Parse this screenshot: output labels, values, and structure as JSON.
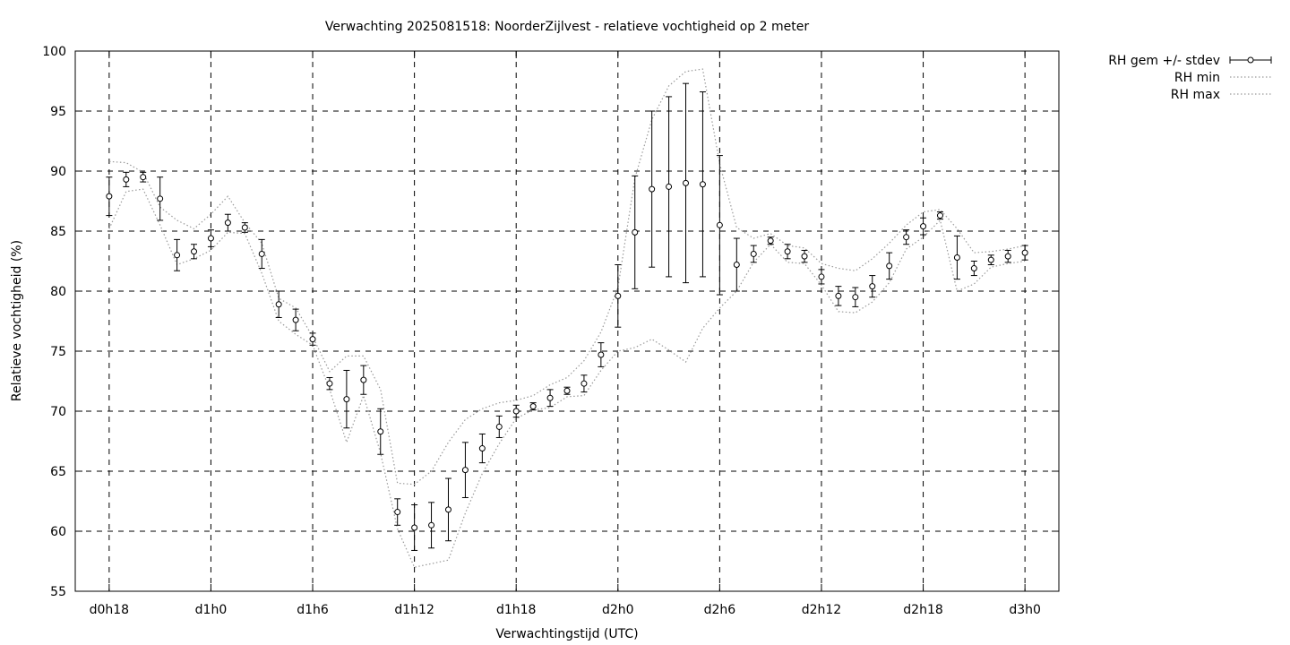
{
  "chart_data": {
    "type": "line",
    "title": "Verwachting 2025081518: NoorderZijlvest - relatieve vochtigheid op 2 meter",
    "xlabel": "Verwachtingstijd (UTC)",
    "ylabel": "Relatieve vochtigheid (%)",
    "xlim": [
      -2,
      56
    ],
    "ylim": [
      55,
      100
    ],
    "grid": true,
    "legend_position": "outside-top-right",
    "x_ticks": [
      {
        "x": 0,
        "label": "d0h18"
      },
      {
        "x": 6,
        "label": "d1h0"
      },
      {
        "x": 12,
        "label": "d1h6"
      },
      {
        "x": 18,
        "label": "d1h12"
      },
      {
        "x": 24,
        "label": "d1h18"
      },
      {
        "x": 30,
        "label": "d2h0"
      },
      {
        "x": 36,
        "label": "d2h6"
      },
      {
        "x": 42,
        "label": "d2h12"
      },
      {
        "x": 48,
        "label": "d2h18"
      },
      {
        "x": 54,
        "label": "d3h0"
      }
    ],
    "y_ticks": [
      55,
      60,
      65,
      70,
      75,
      80,
      85,
      90,
      95,
      100
    ],
    "x": [
      0,
      1,
      2,
      3,
      4,
      5,
      6,
      7,
      8,
      9,
      10,
      11,
      12,
      13,
      14,
      15,
      16,
      17,
      18,
      19,
      20,
      21,
      22,
      23,
      24,
      25,
      26,
      27,
      28,
      29,
      30,
      31,
      32,
      33,
      34,
      35,
      36,
      37,
      38,
      39,
      40,
      41,
      42,
      43,
      44,
      45,
      46,
      47,
      48,
      49,
      50,
      51,
      52,
      53,
      54
    ],
    "series": [
      {
        "name": "RH gem +/- stdev",
        "style": "points-errorbars",
        "mean": [
          87.9,
          89.3,
          89.5,
          87.7,
          83.0,
          83.3,
          84.4,
          85.7,
          85.3,
          83.1,
          78.9,
          77.6,
          76.0,
          72.3,
          71.0,
          72.6,
          68.3,
          61.6,
          60.3,
          60.5,
          61.8,
          65.1,
          66.9,
          68.7,
          70.0,
          70.4,
          71.1,
          71.7,
          72.3,
          74.7,
          79.6,
          84.9,
          88.5,
          88.7,
          89.0,
          88.9,
          85.5,
          82.2,
          83.1,
          84.2,
          83.3,
          82.9,
          81.2,
          79.6,
          79.5,
          80.4,
          82.1,
          84.5,
          85.4,
          86.3,
          82.8,
          81.9,
          82.6,
          82.9,
          83.2
        ],
        "stdev": [
          1.6,
          0.6,
          0.4,
          1.8,
          1.3,
          0.6,
          0.7,
          0.7,
          0.4,
          1.2,
          1.1,
          0.9,
          0.5,
          0.5,
          2.4,
          1.2,
          1.9,
          1.1,
          1.9,
          1.9,
          2.6,
          2.3,
          1.2,
          0.9,
          0.5,
          0.3,
          0.7,
          0.3,
          0.7,
          1.0,
          2.6,
          4.7,
          6.5,
          7.5,
          8.3,
          7.7,
          5.8,
          2.2,
          0.7,
          0.3,
          0.6,
          0.5,
          0.6,
          0.8,
          0.8,
          0.9,
          1.1,
          0.6,
          0.7,
          0.3,
          1.8,
          0.6,
          0.4,
          0.5,
          0.6
        ]
      },
      {
        "name": "RH min",
        "style": "dotted",
        "values": [
          85.2,
          88.3,
          88.5,
          85.5,
          82.2,
          82.7,
          83.4,
          84.9,
          84.8,
          81.5,
          77.5,
          76.4,
          75.5,
          71.8,
          67.4,
          71.3,
          66.5,
          60.2,
          57.0,
          57.3,
          57.6,
          61.5,
          64.8,
          67.3,
          69.4,
          70.1,
          70.3,
          71.2,
          71.3,
          73.4,
          75.0,
          75.3,
          76.0,
          75.1,
          74.1,
          76.9,
          78.6,
          80.0,
          82.4,
          83.9,
          82.4,
          82.3,
          80.5,
          78.3,
          78.2,
          79.1,
          80.7,
          83.5,
          84.5,
          85.9,
          80.0,
          80.6,
          82.0,
          82.3,
          82.5
        ]
      },
      {
        "name": "RH max",
        "style": "dotted",
        "values": [
          90.8,
          90.7,
          89.9,
          87.0,
          85.9,
          85.2,
          86.4,
          87.9,
          85.7,
          84.0,
          79.4,
          78.6,
          76.2,
          73.3,
          74.6,
          74.6,
          71.8,
          64.0,
          63.9,
          65.0,
          67.4,
          69.3,
          70.2,
          70.7,
          70.9,
          71.3,
          72.2,
          72.8,
          74.2,
          76.6,
          80.3,
          89.4,
          94.3,
          97.1,
          98.3,
          98.5,
          90.6,
          85.3,
          84.4,
          84.8,
          83.8,
          83.6,
          82.3,
          81.9,
          81.7,
          82.7,
          84.0,
          85.5,
          86.6,
          86.8,
          85.2,
          83.2,
          83.3,
          83.5,
          83.8
        ]
      }
    ]
  }
}
